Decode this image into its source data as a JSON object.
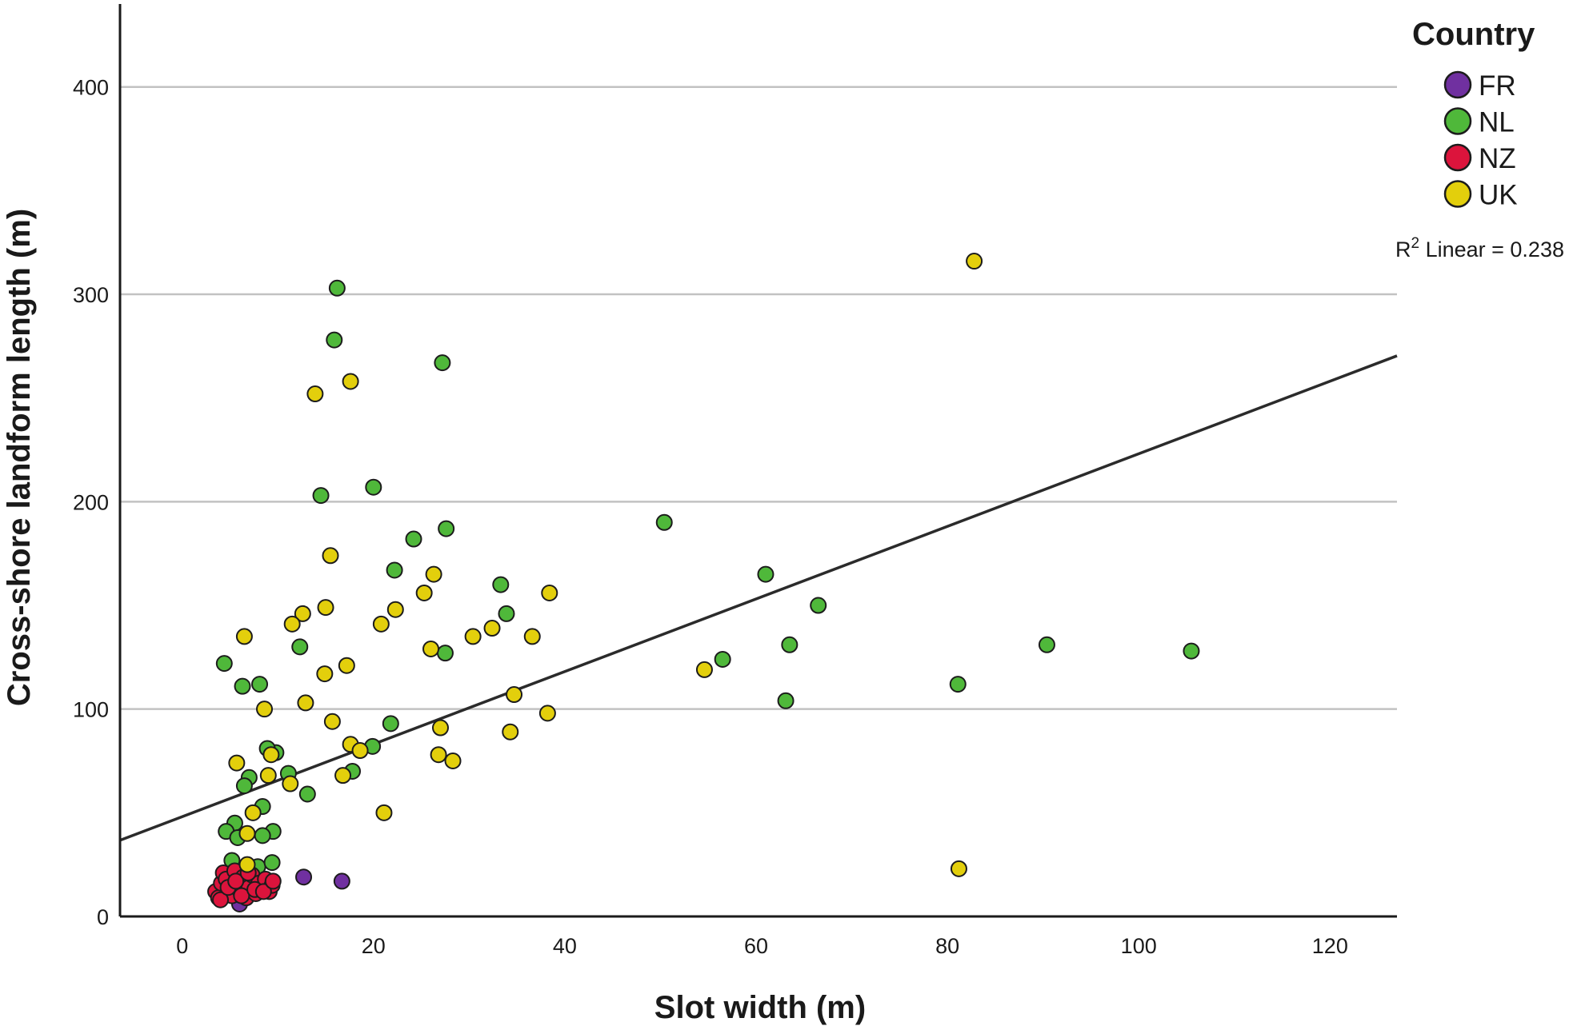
{
  "chart_data": {
    "type": "scatter",
    "xlabel": "Slot width (m)",
    "ylabel": "Cross-shore landform length (m)",
    "xlim": [
      -6.5,
      127
    ],
    "ylim": [
      0,
      440
    ],
    "x_ticks": [
      0,
      20,
      40,
      60,
      80,
      100,
      120
    ],
    "y_ticks": [
      0,
      100,
      200,
      300,
      400
    ],
    "grid": "horizontal",
    "legend": {
      "title": "Country",
      "position": "right"
    },
    "fit": {
      "label_prefix": "R",
      "label_sup": "2",
      "label_suffix": " Linear = 0.238",
      "intercept": 48.1,
      "slope": 1.75
    },
    "series": [
      {
        "name": "FR",
        "color": "#7030a0",
        "points": [
          [
            12.7,
            19
          ],
          [
            16.7,
            17
          ],
          [
            6,
            6
          ]
        ]
      },
      {
        "name": "NL",
        "color": "#4fb83a",
        "points": [
          [
            16.2,
            303
          ],
          [
            15.9,
            278
          ],
          [
            27.2,
            267
          ],
          [
            14.5,
            203
          ],
          [
            20,
            207
          ],
          [
            27.6,
            187
          ],
          [
            24.2,
            182
          ],
          [
            22.2,
            167
          ],
          [
            33.3,
            160
          ],
          [
            33.9,
            146
          ],
          [
            12.3,
            130
          ],
          [
            27.5,
            127
          ],
          [
            21.8,
            93
          ],
          [
            19.9,
            82
          ],
          [
            17.8,
            70
          ],
          [
            13.1,
            59
          ],
          [
            11.1,
            69
          ],
          [
            9.8,
            79
          ],
          [
            8.9,
            81
          ],
          [
            4.4,
            122
          ],
          [
            6.3,
            111
          ],
          [
            8.1,
            112
          ],
          [
            7,
            67
          ],
          [
            6.5,
            63
          ],
          [
            5.5,
            45
          ],
          [
            4.6,
            41
          ],
          [
            8.4,
            53
          ],
          [
            9.5,
            41
          ],
          [
            8.4,
            39
          ],
          [
            5.8,
            38
          ],
          [
            5.2,
            27
          ],
          [
            7.9,
            24
          ],
          [
            9.4,
            26
          ],
          [
            50.4,
            190
          ],
          [
            61,
            165
          ],
          [
            66.5,
            150
          ],
          [
            63.5,
            131
          ],
          [
            56.5,
            124
          ],
          [
            63.1,
            104
          ],
          [
            90.4,
            131
          ],
          [
            105.5,
            128
          ],
          [
            81.1,
            112
          ]
        ]
      },
      {
        "name": "NZ",
        "color": "#dc143c",
        "points": [
          [
            3.5,
            12
          ],
          [
            3.8,
            9
          ],
          [
            4.1,
            16
          ],
          [
            4.3,
            21
          ],
          [
            4.6,
            18
          ],
          [
            4.9,
            13
          ],
          [
            5.2,
            10
          ],
          [
            5.5,
            22
          ],
          [
            5.8,
            15
          ],
          [
            6.1,
            12
          ],
          [
            6.4,
            19
          ],
          [
            6.7,
            9
          ],
          [
            7,
            14
          ],
          [
            7.3,
            20
          ],
          [
            7.7,
            11
          ],
          [
            8,
            16
          ],
          [
            8.3,
            13
          ],
          [
            8.7,
            18
          ],
          [
            9.1,
            12
          ],
          [
            9.4,
            15
          ],
          [
            4,
            8
          ],
          [
            4.8,
            14
          ],
          [
            5.6,
            17
          ],
          [
            6.2,
            10
          ],
          [
            6.9,
            21
          ],
          [
            7.6,
            13
          ],
          [
            8.5,
            12
          ],
          [
            9.5,
            17
          ]
        ]
      },
      {
        "name": "UK",
        "color": "#e3cf0c",
        "points": [
          [
            82.8,
            316
          ],
          [
            17.6,
            258
          ],
          [
            13.9,
            252
          ],
          [
            15.5,
            174
          ],
          [
            26.3,
            165
          ],
          [
            25.3,
            156
          ],
          [
            38.4,
            156
          ],
          [
            22.3,
            148
          ],
          [
            15,
            149
          ],
          [
            12.6,
            146
          ],
          [
            11.5,
            141
          ],
          [
            20.8,
            141
          ],
          [
            30.4,
            135
          ],
          [
            32.4,
            139
          ],
          [
            36.6,
            135
          ],
          [
            6.5,
            135
          ],
          [
            26,
            129
          ],
          [
            17.2,
            121
          ],
          [
            14.9,
            117
          ],
          [
            54.6,
            119
          ],
          [
            34.7,
            107
          ],
          [
            12.9,
            103
          ],
          [
            8.6,
            100
          ],
          [
            38.2,
            98
          ],
          [
            15.7,
            94
          ],
          [
            27,
            91
          ],
          [
            34.3,
            89
          ],
          [
            17.6,
            83
          ],
          [
            18.6,
            80
          ],
          [
            9.3,
            78
          ],
          [
            26.8,
            78
          ],
          [
            28.3,
            75
          ],
          [
            5.7,
            74
          ],
          [
            16.8,
            68
          ],
          [
            9,
            68
          ],
          [
            11.3,
            64
          ],
          [
            7.4,
            50
          ],
          [
            21.1,
            50
          ],
          [
            6.8,
            40
          ],
          [
            6.8,
            25
          ],
          [
            81.2,
            23
          ]
        ]
      }
    ]
  }
}
